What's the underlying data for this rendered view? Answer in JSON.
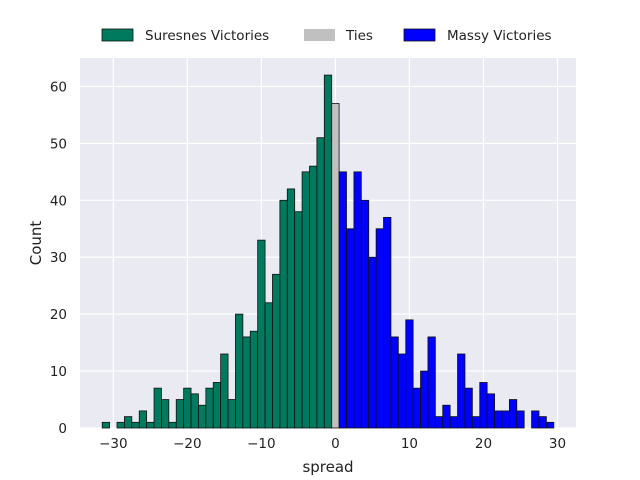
{
  "chart_data": {
    "type": "bar",
    "title": "",
    "xlabel": "spread",
    "ylabel": "Count",
    "xlim": [
      -34.5,
      32.5
    ],
    "ylim": [
      0,
      65
    ],
    "xticks": [
      -30,
      -20,
      -10,
      0,
      10,
      20,
      30
    ],
    "yticks": [
      0,
      10,
      20,
      30,
      40,
      50,
      60
    ],
    "grid": true,
    "legend_position": "top-center",
    "bin_width": 1,
    "series": [
      {
        "name": "Suresnes Victories",
        "color": "#007A5E",
        "x": [
          -31,
          -30,
          -29,
          -28,
          -27,
          -26,
          -25,
          -24,
          -23,
          -22,
          -21,
          -20,
          -19,
          -18,
          -17,
          -16,
          -15,
          -14,
          -13,
          -12,
          -11,
          -10,
          -9,
          -8,
          -7,
          -6,
          -5,
          -4,
          -3,
          -2,
          -1
        ],
        "values": [
          1,
          0,
          1,
          2,
          1,
          3,
          1,
          7,
          5,
          1,
          5,
          7,
          6,
          4,
          7,
          8,
          13,
          5,
          20,
          16,
          17,
          33,
          22,
          27,
          40,
          42,
          38,
          45,
          46,
          51,
          62
        ]
      },
      {
        "name": "Ties",
        "color": "#C0C0C0",
        "x": [
          0
        ],
        "values": [
          57
        ]
      },
      {
        "name": "Massy Victories",
        "color": "#0000FF",
        "x": [
          1,
          2,
          3,
          4,
          5,
          6,
          7,
          8,
          9,
          10,
          11,
          12,
          13,
          14,
          15,
          16,
          17,
          18,
          19,
          20,
          21,
          22,
          23,
          24,
          25,
          26,
          27,
          28,
          29
        ],
        "values": [
          45,
          35,
          45,
          40,
          30,
          35,
          37,
          16,
          13,
          19,
          7,
          10,
          16,
          2,
          4,
          2,
          13,
          7,
          2,
          8,
          6,
          3,
          3,
          5,
          3,
          0,
          3,
          2,
          1
        ]
      }
    ]
  }
}
